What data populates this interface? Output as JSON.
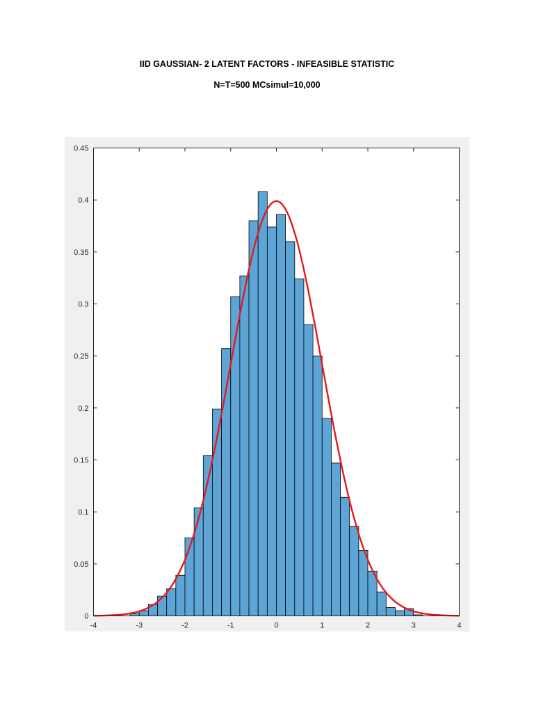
{
  "header": {
    "title": "IID GAUSSIAN- 2 LATENT FACTORS - INFEASIBLE STATISTIC",
    "subtitle": "N=T=500 MCsimul=10,000"
  },
  "colors": {
    "bar_fill": "#5ea5d7",
    "bar_edge": "#000000",
    "curve": "#e31a1c",
    "figure_bg": "#f0f0f0",
    "axes_bg": "#ffffff"
  },
  "chart_data": {
    "type": "bar",
    "title": "IID GAUSSIAN- 2 LATENT FACTORS - INFEASIBLE STATISTIC",
    "subtitle": "N=T=500 MCsimul=10,000",
    "xlabel": "",
    "ylabel": "",
    "xlim": [
      -4,
      4
    ],
    "ylim": [
      0,
      0.45
    ],
    "xticks": [
      "-4",
      "-3",
      "-2",
      "-1",
      "0",
      "1",
      "2",
      "3",
      "4"
    ],
    "yticks": [
      "0",
      "0.05",
      "0.1",
      "0.15",
      "0.2",
      "0.25",
      "0.3",
      "0.35",
      "0.4",
      "0.45"
    ],
    "grid": false,
    "bin_width": 0.2,
    "histogram": {
      "bin_left_edges": [
        -3.2,
        -3.0,
        -2.8,
        -2.6,
        -2.4,
        -2.2,
        -2.0,
        -1.8,
        -1.6,
        -1.4,
        -1.2,
        -1.0,
        -0.8,
        -0.6,
        -0.4,
        -0.2,
        0.0,
        0.2,
        0.4,
        0.6,
        0.8,
        1.0,
        1.2,
        1.4,
        1.6,
        1.8,
        2.0,
        2.2,
        2.4,
        2.6,
        2.8,
        3.0
      ],
      "values": [
        0.002,
        0.005,
        0.011,
        0.019,
        0.026,
        0.039,
        0.075,
        0.104,
        0.154,
        0.199,
        0.257,
        0.307,
        0.327,
        0.38,
        0.408,
        0.374,
        0.386,
        0.36,
        0.324,
        0.28,
        0.25,
        0.19,
        0.147,
        0.114,
        0.086,
        0.063,
        0.043,
        0.023,
        0.008,
        0.005,
        0.007,
        0.001
      ]
    },
    "series": [
      {
        "type": "line",
        "function": "normal_pdf",
        "mean": 0,
        "std": 1,
        "x_range": [
          -4,
          4
        ]
      }
    ]
  }
}
